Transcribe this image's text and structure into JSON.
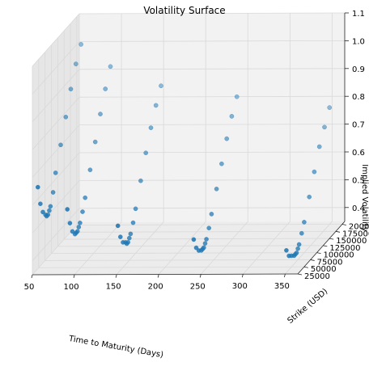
{
  "chart_data": {
    "type": "scatter",
    "projection": "3d",
    "title": "Volatility Surface",
    "xlabel": "Time to Maturity (Days)",
    "ylabel": "Strike (USD)",
    "zlabel": "Implied Volatility",
    "xlim": [
      50,
      365
    ],
    "ylim": [
      25000,
      210000
    ],
    "zlim": [
      0.35,
      1.1
    ],
    "xticks": [
      50,
      100,
      150,
      200,
      250,
      300,
      350
    ],
    "yticks": [
      25000,
      50000,
      75000,
      100000,
      125000,
      150000,
      175000,
      200000
    ],
    "zticks": [
      0.4,
      0.5,
      0.6,
      0.7,
      0.8,
      0.9,
      1.0,
      1.1
    ],
    "xtick_labels": [
      "50",
      "100",
      "150",
      "200",
      "250",
      "300",
      "350"
    ],
    "ytick_labels": [
      "25000",
      "50000",
      "75000",
      "100000",
      "125000",
      "150000",
      "175000",
      "200000"
    ],
    "ztick_labels": [
      "0.4",
      "0.5",
      "0.6",
      "0.7",
      "0.8",
      "0.9",
      "1.0",
      "1.1"
    ],
    "grid": true,
    "marker_color": "#1f77b4",
    "maturities": [
      55,
      90,
      150,
      240,
      350
    ],
    "smile": {
      "strikes": [
        30000,
        40000,
        50000,
        60000,
        65000,
        70000,
        75000,
        80000,
        90000,
        100000,
        120000,
        140000,
        160000,
        180000,
        200000
      ],
      "vols_by_maturity": [
        [
          0.66,
          0.59,
          0.55,
          0.53,
          0.52,
          0.52,
          0.53,
          0.54,
          0.58,
          0.64,
          0.72,
          0.8,
          0.88,
          0.95,
          1.0
        ],
        [
          0.58,
          0.52,
          0.48,
          0.46,
          0.46,
          0.46,
          0.47,
          0.48,
          0.51,
          0.55,
          0.63,
          0.71,
          0.79,
          0.86,
          0.92
        ],
        [
          0.52,
          0.47,
          0.44,
          0.43,
          0.42,
          0.42,
          0.43,
          0.44,
          0.47,
          0.51,
          0.59,
          0.67,
          0.74,
          0.8,
          0.85
        ],
        [
          0.47,
          0.43,
          0.41,
          0.4,
          0.4,
          0.4,
          0.41,
          0.42,
          0.45,
          0.49,
          0.56,
          0.63,
          0.7,
          0.76,
          0.81
        ],
        [
          0.43,
          0.4,
          0.39,
          0.38,
          0.38,
          0.38,
          0.39,
          0.4,
          0.43,
          0.46,
          0.53,
          0.6,
          0.67,
          0.72,
          0.77
        ]
      ]
    }
  }
}
